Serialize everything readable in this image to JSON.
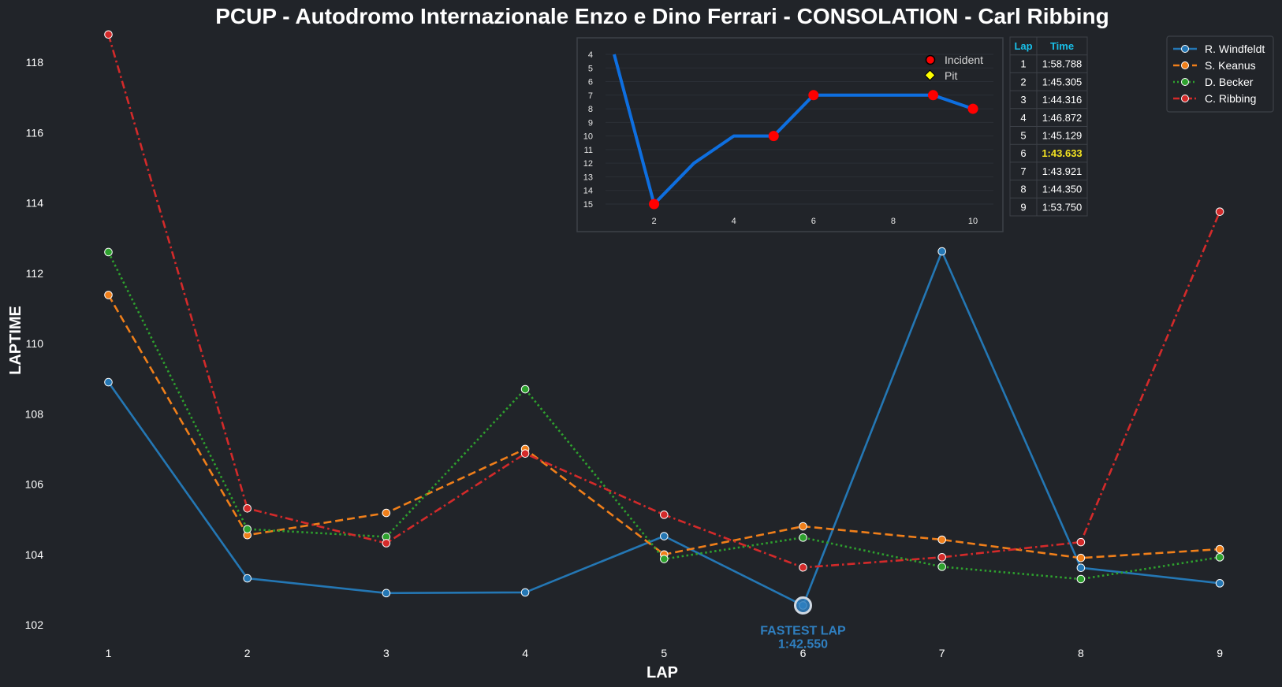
{
  "colors": {
    "background": "#212429",
    "windfeldt": "#2477b4",
    "keanus": "#f07f1a",
    "becker": "#2ea12e",
    "ribbing": "#d32a2a",
    "position_line": "#0e6fe0",
    "incident": "#ff0000",
    "pit": "#ffff00",
    "table_header": "#19bfe8",
    "best_lap": "#f3e222",
    "fastest_annotation": "#2f7fc0"
  },
  "chart_data": [
    {
      "type": "line",
      "title": "PCUP - Autodromo Internazionale Enzo e Dino Ferrari - CONSOLATION - Carl Ribbing",
      "xlabel": "LAP",
      "ylabel": "LAPTIME",
      "x": [
        1,
        2,
        3,
        4,
        5,
        6,
        7,
        8,
        9
      ],
      "xticks": [
        "1",
        "2",
        "3",
        "4",
        "5",
        "6",
        "7",
        "8",
        "9"
      ],
      "yticks": [
        "102",
        "104",
        "106",
        "108",
        "110",
        "112",
        "114",
        "116",
        "118"
      ],
      "ylim": [
        101.5,
        118.9
      ],
      "xlim": [
        0.5,
        9.5
      ],
      "grid": false,
      "legend_position": "top-right",
      "series": [
        {
          "name": "R. Windfeldt",
          "style": "solid",
          "values": [
            108.9,
            103.32,
            102.9,
            102.92,
            104.52,
            102.55,
            112.62,
            103.62,
            103.18
          ]
        },
        {
          "name": "S. Keanus",
          "style": "dashed",
          "values": [
            111.38,
            104.55,
            105.18,
            107.0,
            104.0,
            104.8,
            104.42,
            103.9,
            104.15
          ]
        },
        {
          "name": "D. Becker",
          "style": "dotted",
          "values": [
            112.6,
            104.72,
            104.5,
            108.7,
            103.87,
            104.48,
            103.65,
            103.3,
            103.92
          ]
        },
        {
          "name": "C. Ribbing",
          "style": "dashdot",
          "values": [
            118.79,
            105.31,
            104.32,
            106.87,
            105.13,
            103.63,
            103.92,
            104.35,
            113.75
          ]
        }
      ],
      "annotation": {
        "label": "FASTEST LAP",
        "value": "1:42.550",
        "x": 6,
        "y": 102.55
      }
    },
    {
      "type": "line",
      "title": "",
      "x": [
        1,
        2,
        3,
        4,
        5,
        6,
        7,
        8,
        9,
        10
      ],
      "values": [
        4,
        15,
        12,
        10,
        10,
        7,
        7,
        7,
        7,
        8
      ],
      "xticks": [
        "2",
        "4",
        "6",
        "8",
        "10"
      ],
      "yticks": [
        "4",
        "5",
        "6",
        "7",
        "8",
        "9",
        "10",
        "11",
        "12",
        "13",
        "14",
        "15"
      ],
      "xlim": [
        0.1,
        10.7
      ],
      "ylim": [
        15.8,
        3.6
      ],
      "y_inverted": true,
      "incident_laps": [
        2,
        5,
        6,
        9,
        10
      ],
      "pit_laps": [],
      "legend": [
        "Incident",
        "Pit"
      ],
      "legend_position": "top-right"
    },
    {
      "type": "table",
      "columns": [
        "Lap",
        "Time"
      ],
      "rows": [
        [
          "1",
          "1:58.788"
        ],
        [
          "2",
          "1:45.305"
        ],
        [
          "3",
          "1:44.316"
        ],
        [
          "4",
          "1:46.872"
        ],
        [
          "5",
          "1:45.129"
        ],
        [
          "6",
          "1:43.633"
        ],
        [
          "7",
          "1:43.921"
        ],
        [
          "8",
          "1:44.350"
        ],
        [
          "9",
          "1:53.750"
        ]
      ],
      "best_row": 5
    }
  ]
}
